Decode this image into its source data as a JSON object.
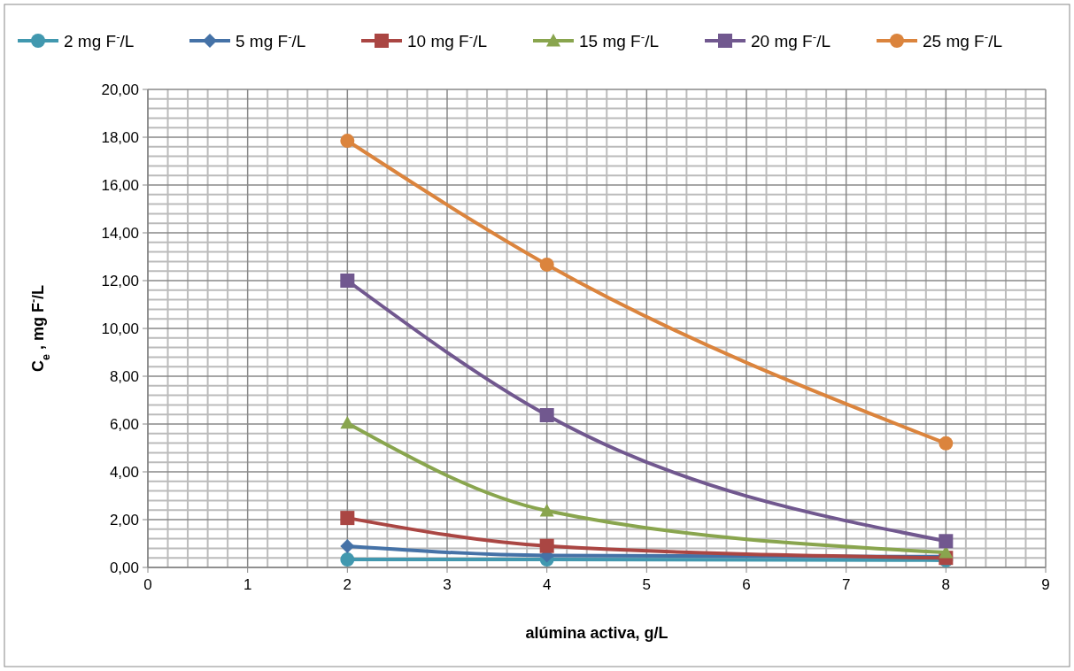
{
  "chart_data": {
    "type": "line",
    "xlabel": "alúmina activa, g/L",
    "ylabel": "C$_{e}$ , mg F$^{-}$/L",
    "x": [
      2,
      4,
      8
    ],
    "series": [
      {
        "name": "2 mg F$^{-}$/L",
        "color": "#4198af",
        "marker": "circle",
        "values": [
          0.33,
          0.33,
          0.3
        ]
      },
      {
        "name": "5 mg F$^{-}$/L",
        "color": "#4572a7",
        "marker": "diamond",
        "values": [
          0.89,
          0.5,
          0.45
        ]
      },
      {
        "name": "10 mg F$^{-}$/L",
        "color": "#aa4643",
        "marker": "square",
        "values": [
          2.07,
          0.9,
          0.4
        ]
      },
      {
        "name": "15 mg F$^{-}$/L",
        "color": "#89a54e",
        "marker": "triangle",
        "values": [
          6.04,
          2.37,
          0.63
        ]
      },
      {
        "name": "20 mg F$^{-}$/L",
        "color": "#71588f",
        "marker": "square",
        "values": [
          12.0,
          6.37,
          1.1
        ]
      },
      {
        "name": "25 mg F$^{-}$/L",
        "color": "#db843d",
        "marker": "circle",
        "values": [
          17.85,
          12.67,
          5.19
        ]
      }
    ],
    "xlim": [
      0,
      9
    ],
    "xticks": [
      0,
      1,
      2,
      3,
      4,
      5,
      6,
      7,
      8,
      9
    ],
    "ylim": [
      0,
      20
    ],
    "yticks": [
      {
        "value": 0,
        "label": "0,00"
      },
      {
        "value": 2,
        "label": "2,00"
      },
      {
        "value": 4,
        "label": "4,00"
      },
      {
        "value": 6,
        "label": "6,00"
      },
      {
        "value": 8,
        "label": "8,00"
      },
      {
        "value": 10,
        "label": "10,00"
      },
      {
        "value": 12,
        "label": "12,00"
      },
      {
        "value": 14,
        "label": "14,00"
      },
      {
        "value": 16,
        "label": "16,00"
      },
      {
        "value": 18,
        "label": "18,00"
      },
      {
        "value": 20,
        "label": "20,00"
      }
    ],
    "grid": true,
    "legend": "top"
  }
}
